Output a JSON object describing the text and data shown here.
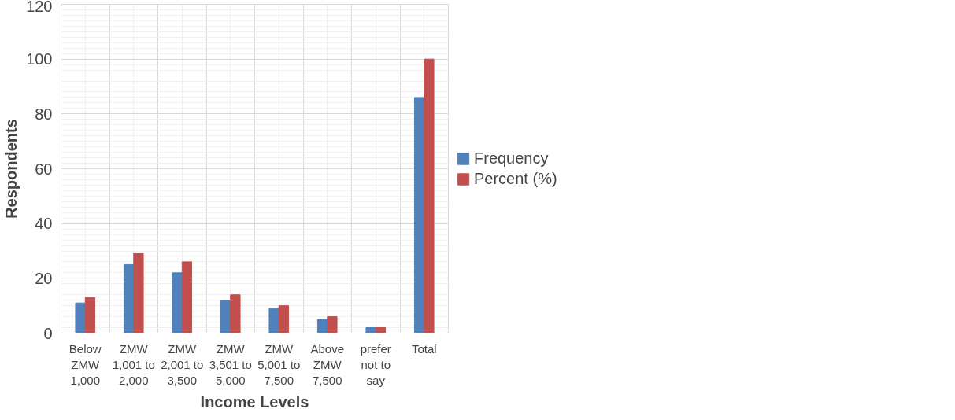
{
  "chart_data": {
    "type": "bar",
    "xlabel": "Income Levels",
    "ylabel": "Respondents",
    "categories": [
      "Below ZMW 1,000",
      "ZMW 1,001 to 2,000",
      "ZMW 2,001 to 3,500",
      "ZMW 3,501 to 5,000",
      "ZMW 5,001 to 7,500",
      "Above ZMW 7,500",
      "prefer not to say",
      "Total"
    ],
    "series": [
      {
        "name": "Frequency",
        "color": "#4f81bd",
        "values": [
          11,
          25,
          22,
          12,
          9,
          5,
          2,
          86
        ]
      },
      {
        "name": "Percent (%)",
        "color": "#c0504d",
        "values": [
          13,
          29,
          26,
          14,
          10,
          6,
          2,
          100
        ]
      }
    ],
    "ylim": [
      0,
      120
    ],
    "yticks": [
      0,
      20,
      40,
      60,
      80,
      100,
      120
    ],
    "grid": true,
    "legend": "right"
  }
}
